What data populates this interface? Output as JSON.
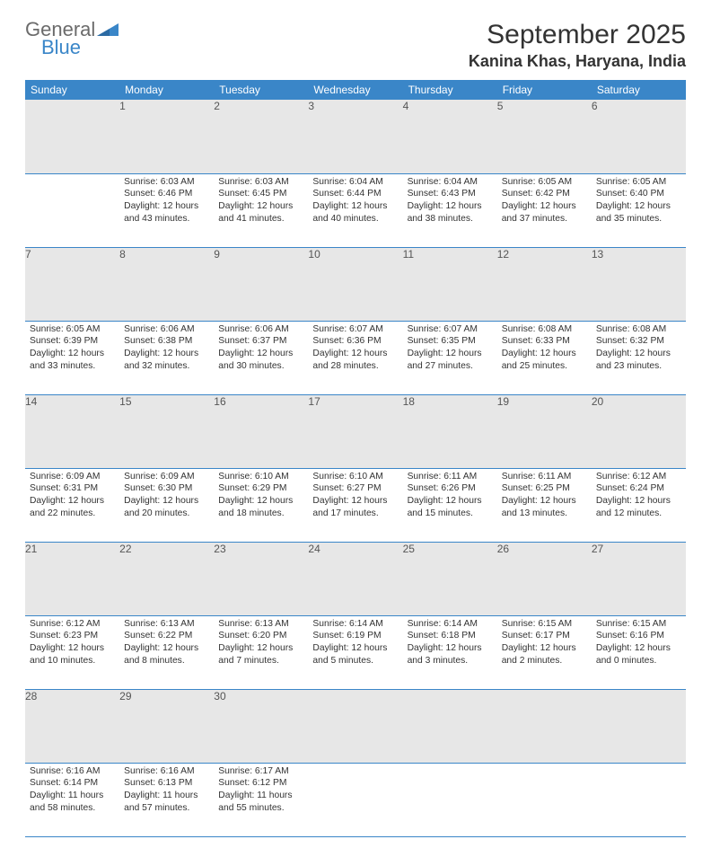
{
  "logo": {
    "word1": "General",
    "word2": "Blue"
  },
  "header": {
    "month_title": "September 2025",
    "location": "Kanina Khas, Haryana, India"
  },
  "colors": {
    "accent": "#3a86c8",
    "header_text": "#ffffff",
    "daynum_bg": "#e7e7e7",
    "body_text": "#333333",
    "logo_gray": "#6b6b6b"
  },
  "weekdays": [
    "Sunday",
    "Monday",
    "Tuesday",
    "Wednesday",
    "Thursday",
    "Friday",
    "Saturday"
  ],
  "start_offset": 1,
  "days": [
    {
      "n": 1,
      "sr": "6:03 AM",
      "ss": "6:46 PM",
      "dl": "12 hours and 43 minutes."
    },
    {
      "n": 2,
      "sr": "6:03 AM",
      "ss": "6:45 PM",
      "dl": "12 hours and 41 minutes."
    },
    {
      "n": 3,
      "sr": "6:04 AM",
      "ss": "6:44 PM",
      "dl": "12 hours and 40 minutes."
    },
    {
      "n": 4,
      "sr": "6:04 AM",
      "ss": "6:43 PM",
      "dl": "12 hours and 38 minutes."
    },
    {
      "n": 5,
      "sr": "6:05 AM",
      "ss": "6:42 PM",
      "dl": "12 hours and 37 minutes."
    },
    {
      "n": 6,
      "sr": "6:05 AM",
      "ss": "6:40 PM",
      "dl": "12 hours and 35 minutes."
    },
    {
      "n": 7,
      "sr": "6:05 AM",
      "ss": "6:39 PM",
      "dl": "12 hours and 33 minutes."
    },
    {
      "n": 8,
      "sr": "6:06 AM",
      "ss": "6:38 PM",
      "dl": "12 hours and 32 minutes."
    },
    {
      "n": 9,
      "sr": "6:06 AM",
      "ss": "6:37 PM",
      "dl": "12 hours and 30 minutes."
    },
    {
      "n": 10,
      "sr": "6:07 AM",
      "ss": "6:36 PM",
      "dl": "12 hours and 28 minutes."
    },
    {
      "n": 11,
      "sr": "6:07 AM",
      "ss": "6:35 PM",
      "dl": "12 hours and 27 minutes."
    },
    {
      "n": 12,
      "sr": "6:08 AM",
      "ss": "6:33 PM",
      "dl": "12 hours and 25 minutes."
    },
    {
      "n": 13,
      "sr": "6:08 AM",
      "ss": "6:32 PM",
      "dl": "12 hours and 23 minutes."
    },
    {
      "n": 14,
      "sr": "6:09 AM",
      "ss": "6:31 PM",
      "dl": "12 hours and 22 minutes."
    },
    {
      "n": 15,
      "sr": "6:09 AM",
      "ss": "6:30 PM",
      "dl": "12 hours and 20 minutes."
    },
    {
      "n": 16,
      "sr": "6:10 AM",
      "ss": "6:29 PM",
      "dl": "12 hours and 18 minutes."
    },
    {
      "n": 17,
      "sr": "6:10 AM",
      "ss": "6:27 PM",
      "dl": "12 hours and 17 minutes."
    },
    {
      "n": 18,
      "sr": "6:11 AM",
      "ss": "6:26 PM",
      "dl": "12 hours and 15 minutes."
    },
    {
      "n": 19,
      "sr": "6:11 AM",
      "ss": "6:25 PM",
      "dl": "12 hours and 13 minutes."
    },
    {
      "n": 20,
      "sr": "6:12 AM",
      "ss": "6:24 PM",
      "dl": "12 hours and 12 minutes."
    },
    {
      "n": 21,
      "sr": "6:12 AM",
      "ss": "6:23 PM",
      "dl": "12 hours and 10 minutes."
    },
    {
      "n": 22,
      "sr": "6:13 AM",
      "ss": "6:22 PM",
      "dl": "12 hours and 8 minutes."
    },
    {
      "n": 23,
      "sr": "6:13 AM",
      "ss": "6:20 PM",
      "dl": "12 hours and 7 minutes."
    },
    {
      "n": 24,
      "sr": "6:14 AM",
      "ss": "6:19 PM",
      "dl": "12 hours and 5 minutes."
    },
    {
      "n": 25,
      "sr": "6:14 AM",
      "ss": "6:18 PM",
      "dl": "12 hours and 3 minutes."
    },
    {
      "n": 26,
      "sr": "6:15 AM",
      "ss": "6:17 PM",
      "dl": "12 hours and 2 minutes."
    },
    {
      "n": 27,
      "sr": "6:15 AM",
      "ss": "6:16 PM",
      "dl": "12 hours and 0 minutes."
    },
    {
      "n": 28,
      "sr": "6:16 AM",
      "ss": "6:14 PM",
      "dl": "11 hours and 58 minutes."
    },
    {
      "n": 29,
      "sr": "6:16 AM",
      "ss": "6:13 PM",
      "dl": "11 hours and 57 minutes."
    },
    {
      "n": 30,
      "sr": "6:17 AM",
      "ss": "6:12 PM",
      "dl": "11 hours and 55 minutes."
    }
  ],
  "labels": {
    "sunrise": "Sunrise:",
    "sunset": "Sunset:",
    "daylight": "Daylight:"
  }
}
